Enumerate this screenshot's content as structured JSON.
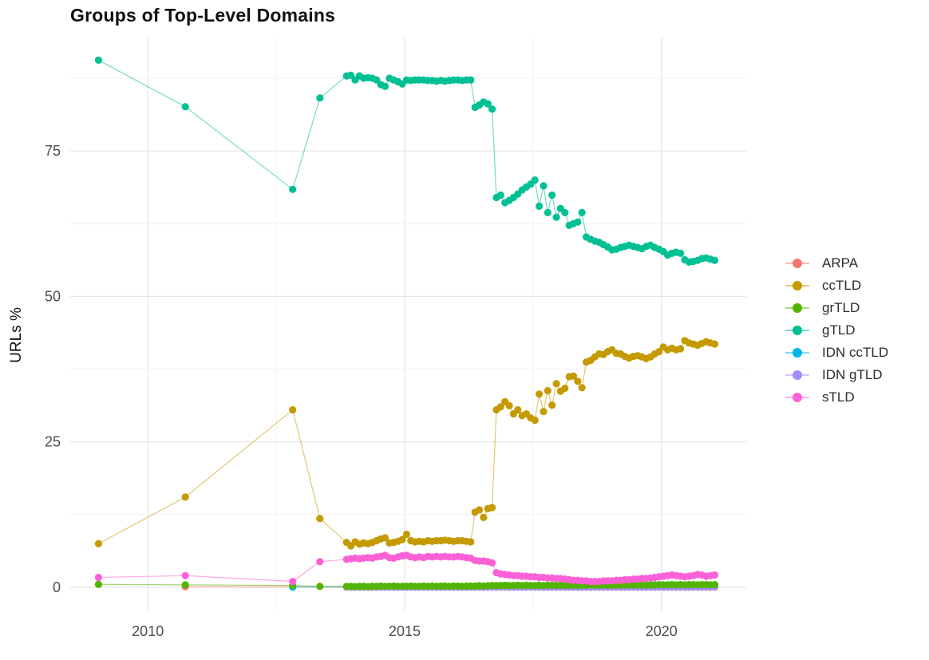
{
  "title": "Groups of Top-Level Domains",
  "y_axis_title": "URLs %",
  "chart_data": {
    "type": "line",
    "title": "Groups of Top-Level Domains",
    "xlabel": "",
    "ylabel": "URLs %",
    "grid": true,
    "legend_position": "right",
    "x_domain": [
      2008.49,
      2021.65
    ],
    "y_domain": [
      -4.0,
      94.5
    ],
    "x_ticks": [
      2010,
      2015,
      2020
    ],
    "x_minor_gridlines": [
      2012.5,
      2017.5
    ],
    "y_ticks": [
      0,
      25,
      50,
      75
    ],
    "y_minor_gridlines": [
      12.5,
      37.5,
      62.5,
      87.5
    ],
    "dense_x": {
      "start": 2013.87,
      "step": 0.08333,
      "count": 87
    },
    "series": [
      {
        "name": "ARPA",
        "color": "#F8766D",
        "pre": [
          [
            2010.73,
            0.1
          ],
          [
            2012.82,
            0.06
          ]
        ],
        "dense_const": 0.04
      },
      {
        "name": "ccTLD",
        "color": "#C49A00",
        "pre": [
          [
            2009.04,
            7.5
          ],
          [
            2010.73,
            15.5
          ],
          [
            2012.82,
            30.5
          ],
          [
            2013.35,
            11.8
          ]
        ],
        "dense_values": [
          7.7,
          7.1,
          7.8,
          7.4,
          7.6,
          7.5,
          7.7,
          8.0,
          8.3,
          8.5,
          7.6,
          7.7,
          7.9,
          8.2,
          9.1,
          8.0,
          7.8,
          7.9,
          7.8,
          8.0,
          7.9,
          8.0,
          8.0,
          8.1,
          8.0,
          7.9,
          8.0,
          8.0,
          7.9,
          7.8,
          12.9,
          13.3,
          12.0,
          13.5,
          13.7,
          30.5,
          31.0,
          31.9,
          31.2,
          29.8,
          30.5,
          29.5,
          29.8,
          29.1,
          28.7,
          33.2,
          30.2,
          33.8,
          31.3,
          35.0,
          33.7,
          34.2,
          36.2,
          36.3,
          35.4,
          34.3,
          38.7,
          39.0,
          39.6,
          40.1,
          40.0,
          40.5,
          40.8,
          40.2,
          40.1,
          39.7,
          39.4,
          39.7,
          39.8,
          39.6,
          39.3,
          39.6,
          40.1,
          40.5,
          41.3,
          40.8,
          41.1,
          40.8,
          41.0,
          42.4,
          42.0,
          41.8,
          41.6,
          41.9,
          42.2,
          42.0,
          41.8
        ]
      },
      {
        "name": "grTLD",
        "color": "#53B400",
        "pre": [
          [
            2009.04,
            0.5
          ],
          [
            2010.73,
            0.4
          ],
          [
            2012.82,
            0.3
          ],
          [
            2013.35,
            0.15
          ]
        ],
        "dense_values": [
          0.15,
          0.15,
          0.1,
          0.15,
          0.15,
          0.1,
          0.15,
          0.15,
          0.2,
          0.15,
          0.15,
          0.2,
          0.15,
          0.15,
          0.15,
          0.2,
          0.15,
          0.15,
          0.2,
          0.15,
          0.2,
          0.15,
          0.2,
          0.2,
          0.15,
          0.2,
          0.2,
          0.15,
          0.2,
          0.2,
          0.2,
          0.25,
          0.2,
          0.25,
          0.3,
          0.3,
          0.3,
          0.35,
          0.3,
          0.3,
          0.35,
          0.3,
          0.35,
          0.3,
          0.3,
          0.35,
          0.3,
          0.35,
          0.35,
          0.3,
          0.35,
          0.3,
          0.35,
          0.35,
          0.3,
          0.35,
          0.35,
          0.4,
          0.35,
          0.35,
          0.4,
          0.35,
          0.35,
          0.4,
          0.35,
          0.4,
          0.4,
          0.35,
          0.4,
          0.4,
          0.35,
          0.4,
          0.4,
          0.45,
          0.4,
          0.4,
          0.45,
          0.4,
          0.45,
          0.4,
          0.45,
          0.45,
          0.4,
          0.45,
          0.45,
          0.4,
          0.45
        ]
      },
      {
        "name": "gTLD",
        "color": "#00C094",
        "pre": [
          [
            2009.04,
            90.6
          ],
          [
            2010.73,
            82.6
          ],
          [
            2012.82,
            68.4
          ],
          [
            2013.35,
            84.1
          ]
        ],
        "dense_values": [
          87.9,
          88.0,
          87.2,
          87.9,
          87.5,
          87.6,
          87.5,
          87.2,
          86.4,
          86.1,
          87.5,
          87.2,
          86.9,
          86.5,
          87.2,
          87.1,
          87.2,
          87.2,
          87.2,
          87.1,
          87.1,
          87.0,
          87.1,
          87.0,
          87.1,
          87.2,
          87.2,
          87.1,
          87.2,
          87.2,
          82.5,
          82.9,
          83.4,
          83.1,
          82.2,
          67.0,
          67.4,
          66.1,
          66.5,
          67.0,
          67.6,
          68.3,
          68.8,
          69.3,
          70.0,
          65.5,
          69.0,
          64.4,
          67.4,
          63.6,
          65.1,
          64.4,
          62.2,
          62.5,
          62.8,
          64.4,
          60.2,
          59.8,
          59.5,
          59.3,
          58.9,
          58.5,
          58.0,
          58.1,
          58.4,
          58.6,
          58.8,
          58.6,
          58.4,
          58.2,
          58.6,
          58.8,
          58.4,
          58.1,
          57.7,
          57.1,
          57.4,
          57.6,
          57.4,
          56.3,
          55.9,
          56.0,
          56.2,
          56.5,
          56.6,
          56.4,
          56.2
        ]
      },
      {
        "name": "IDN ccTLD",
        "color": "#00B6EB",
        "pre": [
          [
            2012.82,
            0.03
          ]
        ],
        "dense_const": 0.07
      },
      {
        "name": "IDN gTLD",
        "color": "#A58AFF",
        "pre": [],
        "dense_const": 0.05
      },
      {
        "name": "sTLD",
        "color": "#FB61D7",
        "pre": [
          [
            2009.04,
            1.7
          ],
          [
            2010.73,
            2.0
          ],
          [
            2012.82,
            1.0
          ],
          [
            2013.35,
            4.4
          ]
        ],
        "dense_values": [
          4.8,
          4.9,
          5.0,
          4.9,
          5.0,
          5.1,
          5.0,
          5.2,
          5.3,
          5.5,
          5.1,
          5.0,
          5.2,
          5.4,
          5.5,
          5.2,
          5.1,
          5.2,
          5.1,
          5.3,
          5.2,
          5.3,
          5.2,
          5.3,
          5.2,
          5.2,
          5.3,
          5.2,
          5.1,
          5.0,
          4.6,
          4.5,
          4.5,
          4.4,
          4.2,
          2.5,
          2.3,
          2.2,
          2.1,
          2.0,
          2.0,
          1.9,
          1.9,
          1.8,
          1.8,
          1.7,
          1.7,
          1.6,
          1.6,
          1.5,
          1.5,
          1.4,
          1.3,
          1.2,
          1.2,
          1.1,
          1.1,
          1.0,
          1.0,
          1.0,
          1.1,
          1.1,
          1.1,
          1.2,
          1.2,
          1.3,
          1.3,
          1.4,
          1.4,
          1.5,
          1.5,
          1.6,
          1.7,
          1.8,
          1.9,
          2.0,
          2.1,
          2.0,
          1.9,
          1.8,
          1.9,
          2.0,
          2.2,
          2.1,
          1.9,
          2.0,
          2.1
        ]
      }
    ]
  }
}
